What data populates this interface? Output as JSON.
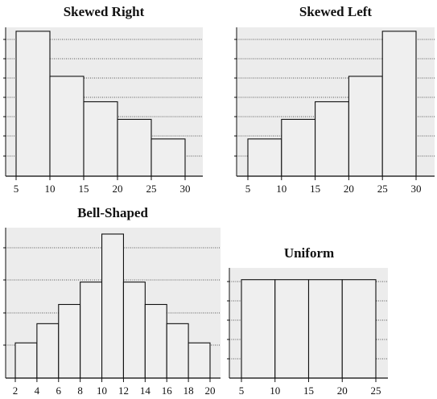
{
  "chart_data": [
    {
      "type": "bar",
      "title": "Skewed Right",
      "bins": [
        [
          5,
          10
        ],
        [
          10,
          15
        ],
        [
          15,
          20
        ],
        [
          20,
          25
        ],
        [
          25,
          30
        ]
      ],
      "values": [
        7.4,
        5.1,
        3.8,
        2.9,
        1.9
      ],
      "ylim": [
        0,
        7.6
      ],
      "xticks": [
        5,
        10,
        15,
        20,
        25,
        30
      ],
      "grid": true,
      "xlabel": "",
      "ylabel": ""
    },
    {
      "type": "bar",
      "title": "Skewed Left",
      "bins": [
        [
          5,
          10
        ],
        [
          10,
          15
        ],
        [
          15,
          20
        ],
        [
          20,
          25
        ],
        [
          25,
          30
        ]
      ],
      "values": [
        1.9,
        2.9,
        3.8,
        5.1,
        7.4
      ],
      "ylim": [
        0,
        7.6
      ],
      "xticks": [
        5,
        10,
        15,
        20,
        25,
        30
      ],
      "grid": true,
      "xlabel": "",
      "ylabel": ""
    },
    {
      "type": "bar",
      "title": "Bell-Shaped",
      "bins": [
        [
          2,
          4
        ],
        [
          4,
          6
        ],
        [
          6,
          8
        ],
        [
          8,
          10
        ],
        [
          10,
          12
        ],
        [
          12,
          14
        ],
        [
          14,
          16
        ],
        [
          16,
          18
        ],
        [
          18,
          20
        ]
      ],
      "values": [
        1.1,
        1.7,
        2.3,
        3.0,
        4.5,
        3.0,
        2.3,
        1.7,
        1.1
      ],
      "ylim": [
        0,
        4.7
      ],
      "xticks": [
        2,
        4,
        6,
        8,
        10,
        12,
        14,
        16,
        18,
        20
      ],
      "grid": true,
      "xlabel": "",
      "ylabel": ""
    },
    {
      "type": "bar",
      "title": "Uniform",
      "bins": [
        [
          5,
          10
        ],
        [
          10,
          15
        ],
        [
          15,
          20
        ],
        [
          20,
          25
        ]
      ],
      "values": [
        5,
        5,
        5,
        5
      ],
      "ylim": [
        0,
        5.6
      ],
      "xticks": [
        5,
        10,
        15,
        20,
        25
      ],
      "grid": true,
      "xlabel": "",
      "ylabel": ""
    }
  ]
}
